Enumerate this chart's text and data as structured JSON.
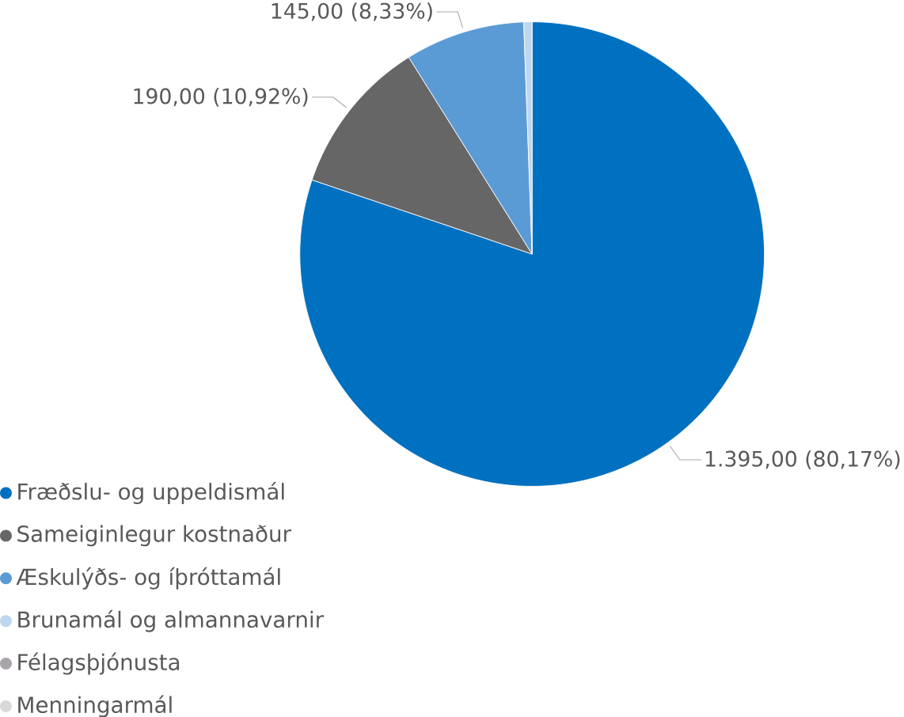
{
  "chart_data": {
    "type": "pie",
    "categories": [
      "Fræðslu- og uppeldismál",
      "Sameiginlegur kostnaður",
      "Æskulýðs- og íþróttamál",
      "Brunamál og almannavarnir",
      "Félagsþjónusta",
      "Menningarmál"
    ],
    "values": [
      1395,
      190,
      145,
      10,
      null,
      null
    ],
    "value_labels": [
      "1.395,00 (80,17%)",
      "190,00 (10,92%)",
      "145,00 (8,33%)",
      null,
      null,
      null
    ],
    "colors": [
      "#0070c0",
      "#666666",
      "#5b9bd5",
      "#bdd7ee",
      "#a9a4a9",
      "#d9d9d9"
    ],
    "legend": "bottom left"
  }
}
